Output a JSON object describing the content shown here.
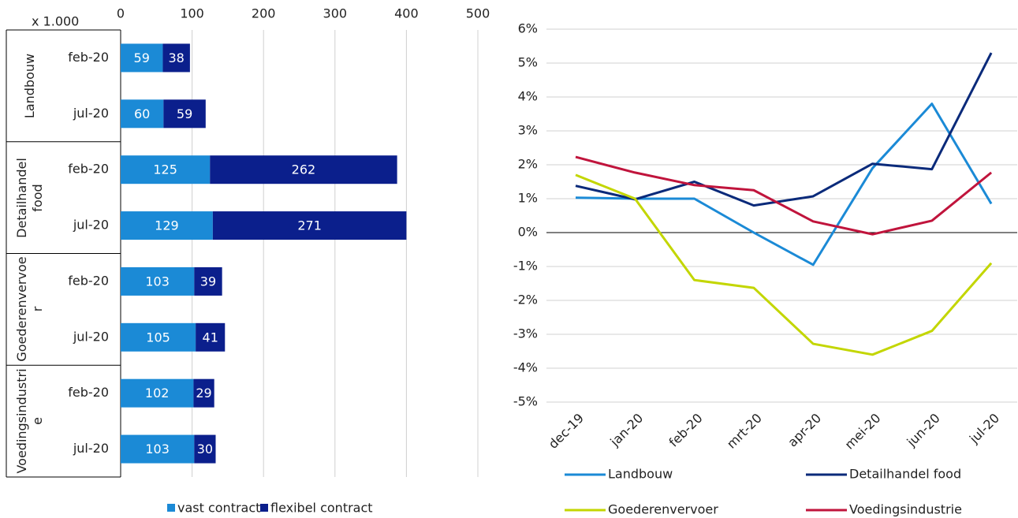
{
  "chart_data": [
    {
      "type": "hbar-stacked",
      "xlabel": "x 1.000",
      "groups": [
        "Landbouw",
        "Detailhandel food",
        "Goederenvervoer",
        "Voedingsindustrie"
      ],
      "categories": [
        "feb-20",
        "jul-20",
        "feb-20",
        "jul-20",
        "feb-20",
        "jul-20",
        "feb-20",
        "jul-20"
      ],
      "series": [
        {
          "name": "vast contract",
          "color": "#1b8ad6",
          "values": [
            59,
            60,
            125,
            129,
            103,
            105,
            102,
            103
          ]
        },
        {
          "name": "flexibel contract",
          "color": "#0b1f8c",
          "values": [
            38,
            59,
            262,
            271,
            39,
            41,
            29,
            30
          ]
        }
      ],
      "xlim": [
        0,
        500
      ],
      "xticks": [
        0,
        100,
        200,
        300,
        400,
        500
      ],
      "grid": true
    },
    {
      "type": "line",
      "categories": [
        "dec-19",
        "jan-20",
        "feb-20",
        "mrt-20",
        "apr-20",
        "mei-20",
        "jun-20",
        "jul-20"
      ],
      "series": [
        {
          "name": "Landbouw",
          "color": "#1b8ad6",
          "values": [
            1.03,
            1.0,
            1.0,
            0.0,
            -0.95,
            1.9,
            3.8,
            0.85
          ]
        },
        {
          "name": "Detailhandel food",
          "color": "#0a2a7a",
          "values": [
            1.38,
            0.98,
            1.5,
            0.8,
            1.07,
            2.03,
            1.87,
            5.3
          ]
        },
        {
          "name": "Goederenvervoer",
          "color": "#c3d600",
          "values": [
            1.7,
            1.0,
            -1.4,
            -1.63,
            -3.28,
            -3.6,
            -2.9,
            -0.9
          ]
        },
        {
          "name": "Voedingsindustrie",
          "color": "#c0143c",
          "values": [
            2.23,
            1.77,
            1.4,
            1.25,
            0.33,
            -0.05,
            0.35,
            1.77
          ]
        }
      ],
      "ylim": [
        -5,
        6
      ],
      "yticks": [
        {
          "value": -5,
          "label": "-5%"
        },
        {
          "value": -4,
          "label": "-4%"
        },
        {
          "value": -3,
          "label": "-3%"
        },
        {
          "value": -2,
          "label": "-2%"
        },
        {
          "value": -1,
          "label": "-1%"
        },
        {
          "value": 0,
          "label": "0%"
        },
        {
          "value": 1,
          "label": "1%"
        },
        {
          "value": 2,
          "label": "2%"
        },
        {
          "value": 3,
          "label": "3%"
        },
        {
          "value": 4,
          "label": "4%"
        },
        {
          "value": 5,
          "label": "5%"
        },
        {
          "value": 6,
          "label": "6%"
        }
      ],
      "grid": true
    }
  ]
}
